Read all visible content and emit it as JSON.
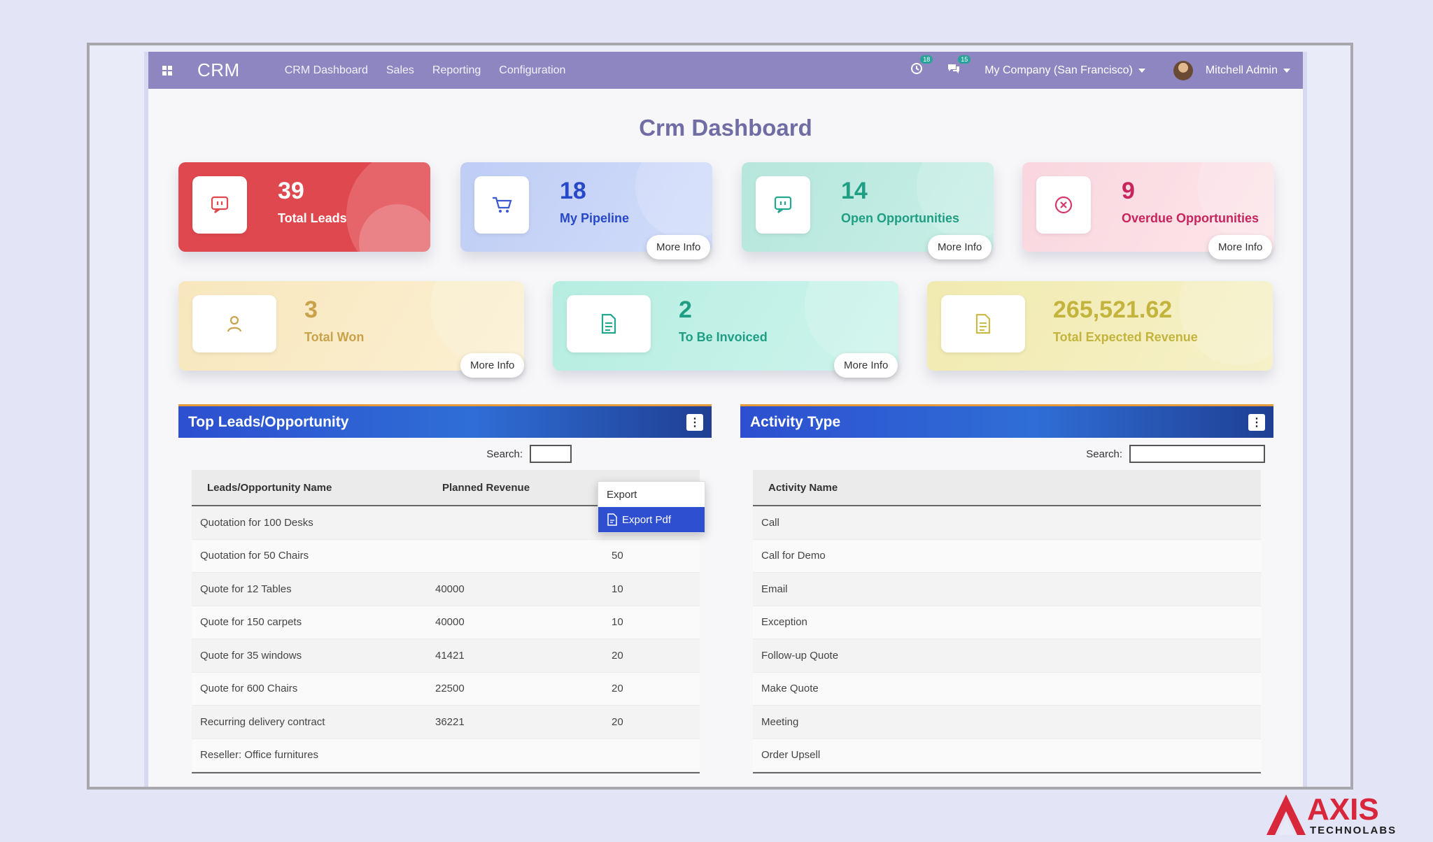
{
  "navbar": {
    "brand": "CRM",
    "links": [
      "CRM Dashboard",
      "Sales",
      "Reporting",
      "Configuration"
    ],
    "activity_badge": "18",
    "message_badge": "15",
    "company": "My Company (San Francisco)",
    "user": "Mitchell Admin"
  },
  "page": {
    "title": "Crm Dashboard"
  },
  "cards": [
    {
      "value": "39",
      "label": "Total Leads",
      "more": ""
    },
    {
      "value": "18",
      "label": "My Pipeline",
      "more": "More Info"
    },
    {
      "value": "14",
      "label": "Open Opportunities",
      "more": "More Info"
    },
    {
      "value": "9",
      "label": "Overdue Opportunities",
      "more": "More Info"
    },
    {
      "value": "3",
      "label": "Total Won",
      "more": "More Info"
    },
    {
      "value": "2",
      "label": "To Be Invoiced",
      "more": "More Info"
    },
    {
      "value": "265,521.62",
      "label": "Total Expected Revenue",
      "more": ""
    }
  ],
  "leads_panel": {
    "title": "Top Leads/Opportunity",
    "search_label": "Search:",
    "columns": [
      "Leads/Opportunity Name",
      "Planned Revenue",
      ""
    ],
    "rows": [
      [
        "Quotation for 100 Desks",
        "",
        ""
      ],
      [
        "Quotation for 50 Chairs",
        "",
        "50"
      ],
      [
        "Quote for 12 Tables",
        "40000",
        "10"
      ],
      [
        "Quote for 150 carpets",
        "40000",
        "10"
      ],
      [
        "Quote for 35 windows",
        "41421",
        "20"
      ],
      [
        "Quote for 600 Chairs",
        "22500",
        "20"
      ],
      [
        "Recurring delivery contract",
        "36221",
        "20"
      ],
      [
        "Reseller: Office furnitures",
        "",
        ""
      ]
    ],
    "dropdown": {
      "items": [
        "Export",
        "Export Pdf"
      ],
      "active": "Export Pdf"
    }
  },
  "activity_panel": {
    "title": "Activity Type",
    "search_label": "Search:",
    "columns": [
      "Activity Name"
    ],
    "rows": [
      "Call",
      "Call for Demo",
      "Email",
      "Exception",
      "Follow-up Quote",
      "Make Quote",
      "Meeting",
      "Order Upsell"
    ]
  },
  "watermark": {
    "word": "AXIS",
    "sub": "TECHNOLABS"
  },
  "colors": {
    "navbar": "#8e86c0",
    "total_leads": "#e0484f",
    "my_pipeline": "#c4d3f7",
    "open_opportunities": "#bde8df",
    "overdue_opportunities": "#fbdde4",
    "total_won": "#f9ebc6",
    "to_be_invoiced": "#bff0e6",
    "total_expected_revenue": "#f4efb7",
    "panel_header": "#2d4fd0",
    "logo_red": "#d8263a"
  }
}
